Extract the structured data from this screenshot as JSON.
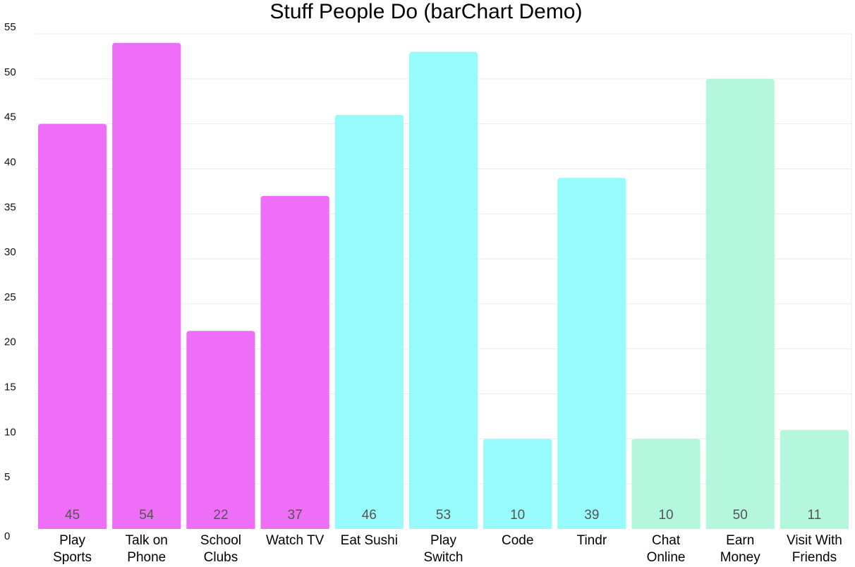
{
  "chart_data": {
    "type": "bar",
    "title": "Stuff People Do (barChart Demo)",
    "xlabel": "",
    "ylabel": "",
    "ylim": [
      0,
      55
    ],
    "yticks": [
      0,
      5,
      10,
      15,
      20,
      25,
      30,
      35,
      40,
      45,
      50,
      55
    ],
    "grid": true,
    "categories": [
      [
        "Play",
        "Sports"
      ],
      [
        "Talk on",
        "Phone"
      ],
      [
        "School",
        "Clubs"
      ],
      [
        "Watch TV"
      ],
      [
        "Eat Sushi"
      ],
      [
        "Play",
        "Switch"
      ],
      [
        "Code"
      ],
      [
        "Tindr"
      ],
      [
        "Chat",
        "Online"
      ],
      [
        "Earn",
        "Money"
      ],
      [
        "Visit With",
        "Friends"
      ]
    ],
    "values": [
      45,
      54,
      22,
      37,
      46,
      53,
      10,
      39,
      10,
      50,
      11
    ],
    "value_labels": [
      "45",
      "54",
      "22",
      "37",
      "46",
      "53",
      "10",
      "39",
      "10",
      "50",
      "11"
    ],
    "bar_colors": [
      "#ef6ef7",
      "#ef6ef7",
      "#ef6ef7",
      "#ef6ef7",
      "#98fbfb",
      "#98fbfb",
      "#98fbfb",
      "#98fbfb",
      "#b4f7dd",
      "#b4f7dd",
      "#b4f7dd"
    ],
    "colors": {
      "magenta": "#ef6ef7",
      "cyan": "#98fbfb",
      "mint": "#b4f7dd",
      "grid": "#ebebeb",
      "data_label": "#555555"
    }
  }
}
